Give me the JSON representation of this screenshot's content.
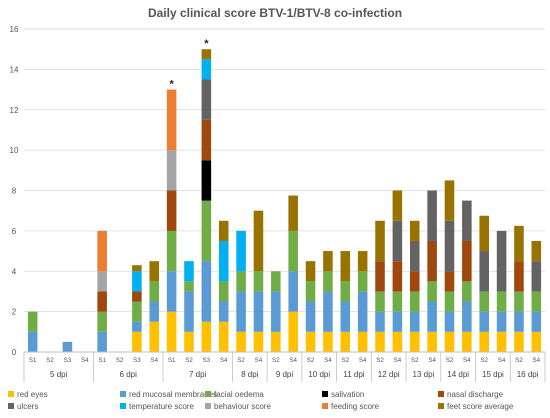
{
  "chart_data": {
    "type": "bar",
    "stacked": true,
    "title": "Daily clinical score BTV-1/BTV-8 co-infection",
    "xlabel": "",
    "ylabel": "",
    "ylim": [
      0,
      16
    ],
    "yticks": [
      0,
      2,
      4,
      6,
      8,
      10,
      12,
      14,
      16
    ],
    "grid": true,
    "legend_position": "bottom",
    "groups": [
      {
        "label": "5 dpi",
        "categories": [
          "S1",
          "S2",
          "S3",
          "S4"
        ]
      },
      {
        "label": "6 dpi",
        "categories": [
          "S1",
          "S2",
          "S3",
          "S4"
        ]
      },
      {
        "label": "7 dpi",
        "categories": [
          "S1",
          "S2",
          "S3",
          "S4"
        ]
      },
      {
        "label": "8 dpi",
        "categories": [
          "S2",
          "S4"
        ]
      },
      {
        "label": "9 dpi",
        "categories": [
          "S2",
          "S4"
        ]
      },
      {
        "label": "10 dpi",
        "categories": [
          "S2",
          "S4"
        ]
      },
      {
        "label": "11 dpi",
        "categories": [
          "S2",
          "S4"
        ]
      },
      {
        "label": "12 dpi",
        "categories": [
          "S2",
          "S4"
        ]
      },
      {
        "label": "13 dpi",
        "categories": [
          "S2",
          "S4"
        ]
      },
      {
        "label": "14 dpi",
        "categories": [
          "S2",
          "S4"
        ]
      },
      {
        "label": "15 dpi",
        "categories": [
          "S2",
          "S4"
        ]
      },
      {
        "label": "16 dpi",
        "categories": [
          "S2",
          "S4"
        ]
      }
    ],
    "annotations": [
      {
        "text": "*",
        "group": 2,
        "category": 0
      },
      {
        "text": "*",
        "group": 2,
        "category": 2
      }
    ],
    "series": [
      {
        "name": "red eyes",
        "color": "#FFC000",
        "values": [
          0,
          0,
          0,
          0,
          0,
          0,
          1,
          1.5,
          2,
          1,
          1.5,
          1.5,
          1,
          1,
          1,
          2,
          1,
          1,
          1,
          1,
          1,
          1,
          1,
          1,
          1,
          1,
          1,
          1,
          1,
          1
        ]
      },
      {
        "name": "red mucosal membranes",
        "color": "#5B9BD5",
        "values": [
          1,
          0,
          0.5,
          0,
          1,
          0,
          0.5,
          1,
          2,
          2,
          3,
          1,
          2,
          2,
          2,
          2,
          1.5,
          2,
          1.5,
          2,
          1,
          1,
          1,
          1.5,
          1,
          1.5,
          1,
          1,
          1,
          1
        ]
      },
      {
        "name": "facial oedema",
        "color": "#70AD47",
        "values": [
          1,
          0,
          0,
          0,
          1,
          0,
          1,
          1,
          2,
          0.5,
          3,
          1,
          1,
          1,
          1,
          2,
          1,
          1,
          1,
          1,
          1,
          1,
          1,
          1,
          1,
          1,
          1,
          1,
          1,
          1
        ]
      },
      {
        "name": "salivation",
        "color": "#000000",
        "values": [
          0,
          0,
          0,
          0,
          0,
          0,
          0,
          0,
          0,
          0,
          2,
          0,
          0,
          0,
          0,
          0,
          0,
          0,
          0,
          0,
          0,
          0,
          0,
          0,
          0,
          0,
          0,
          0,
          0,
          0
        ]
      },
      {
        "name": "nasal discharge",
        "color": "#9E480E",
        "values": [
          0,
          0,
          0,
          0,
          1,
          0,
          0.5,
          0,
          2,
          0,
          2,
          0,
          0,
          0,
          0,
          0,
          0,
          0,
          0,
          0,
          1.5,
          1.5,
          1,
          2,
          1,
          2,
          0,
          0,
          1.5,
          0
        ]
      },
      {
        "name": "ulcers",
        "color": "#636363",
        "values": [
          0,
          0,
          0,
          0,
          0,
          0,
          0,
          0,
          0,
          0,
          2,
          0,
          0,
          0,
          0,
          0,
          0,
          0,
          0,
          0,
          0,
          2,
          1.5,
          2.5,
          2.5,
          2,
          2,
          3,
          0,
          1.5
        ]
      },
      {
        "name": "temperature score",
        "color": "#00B0F0",
        "values": [
          0,
          0,
          0,
          0,
          0,
          0,
          1,
          0,
          0,
          1,
          1,
          2,
          2,
          0,
          0,
          0,
          0,
          0,
          0,
          0,
          0,
          0,
          0,
          0,
          0,
          0,
          0,
          0,
          0,
          0
        ]
      },
      {
        "name": "behaviour score",
        "color": "#A5A5A5",
        "values": [
          0,
          0,
          0,
          0,
          1,
          0,
          0,
          0,
          2,
          0,
          0,
          0,
          0,
          0,
          0,
          0,
          0,
          0,
          0,
          0,
          0,
          0,
          0,
          0,
          0,
          0,
          0,
          0,
          0,
          0
        ]
      },
      {
        "name": "feeding score",
        "color": "#ED7D31",
        "values": [
          0,
          0,
          0,
          0,
          2,
          0,
          0,
          0,
          3,
          0,
          0,
          0,
          0,
          0,
          0,
          0,
          0,
          0,
          0,
          0,
          0,
          0,
          0,
          0,
          0,
          0,
          0,
          0,
          0,
          0
        ]
      },
      {
        "name": "feet score average",
        "color": "#997300",
        "values": [
          0,
          0,
          0,
          0,
          0,
          0,
          0.3,
          1,
          0,
          0,
          0.5,
          1,
          0,
          3,
          0,
          1.75,
          1,
          1,
          1.5,
          1,
          2,
          1.5,
          1,
          0,
          2,
          0,
          1.75,
          0,
          1.75,
          1
        ]
      }
    ]
  }
}
